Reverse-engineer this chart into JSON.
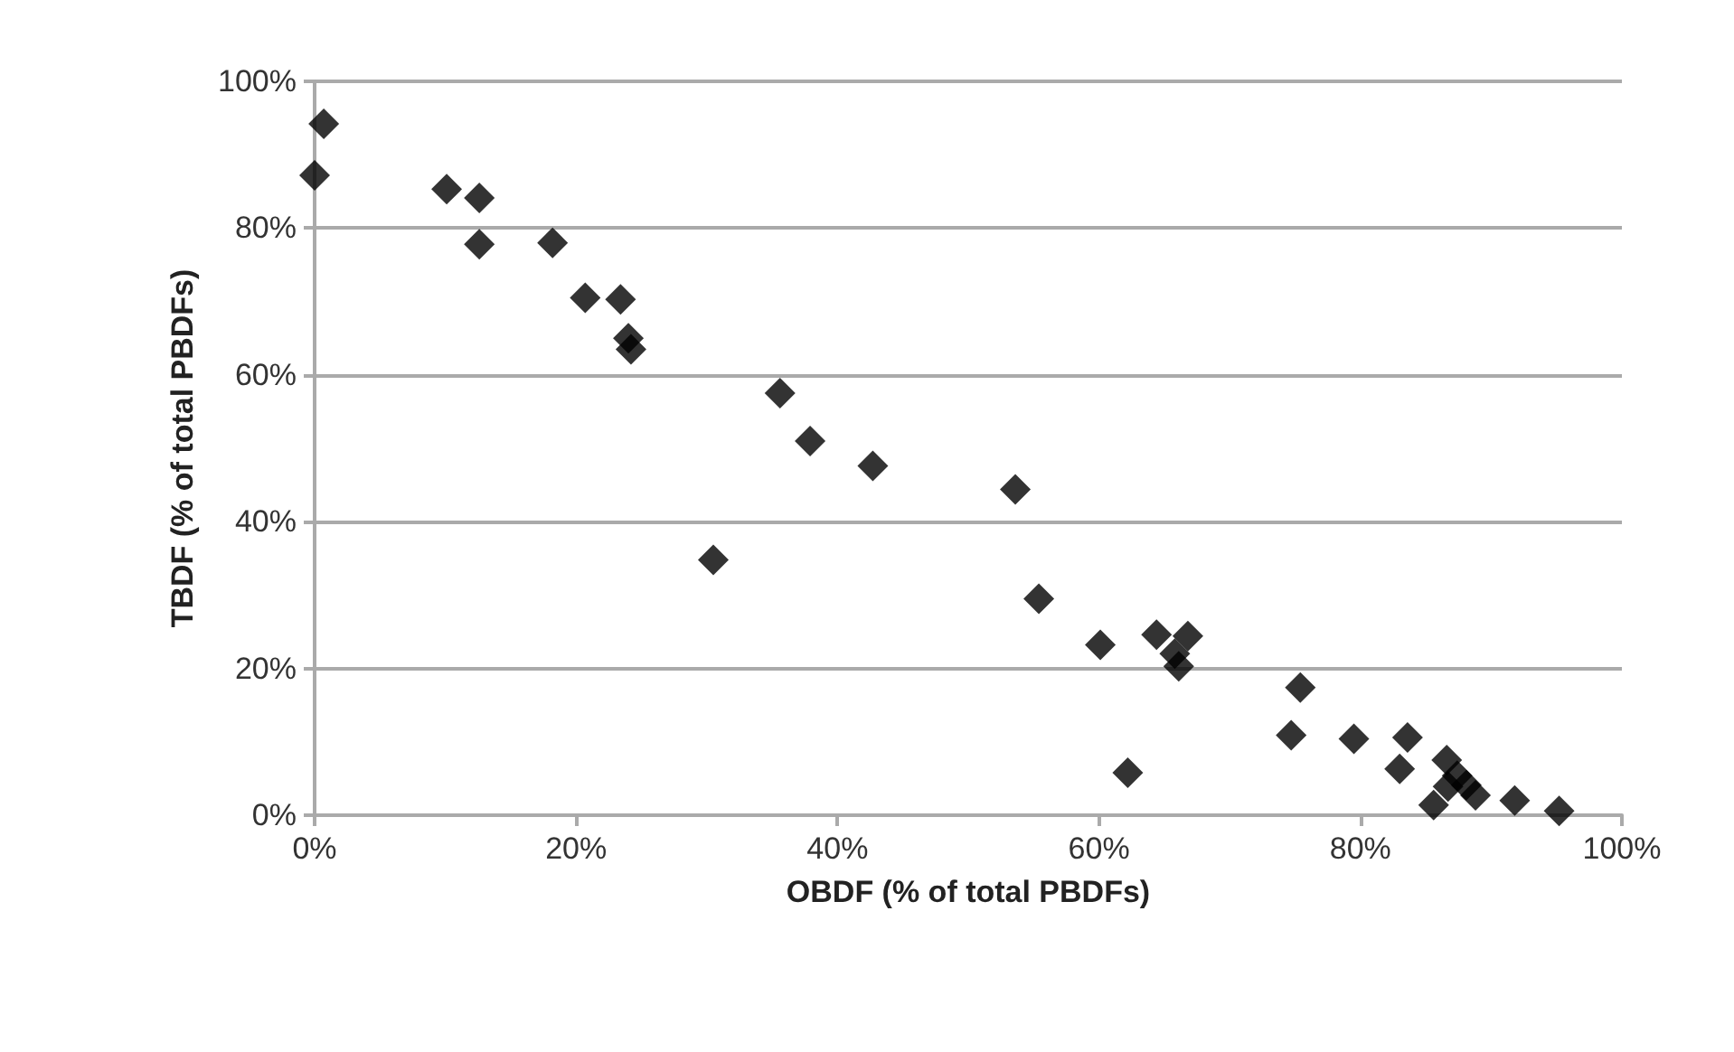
{
  "chart_data": {
    "type": "scatter",
    "xlabel": "OBDF (% of total PBDFs)",
    "ylabel": "TBDF (% of total PBDFs)",
    "x": [
      0,
      0.7,
      10.1,
      12,
      12.6,
      12.6,
      18.2,
      20.7,
      23.4,
      24,
      24.2,
      30.5,
      35.6,
      37.9,
      42.7,
      53.6,
      55.4,
      60.1,
      62.2,
      64.4,
      66.8,
      65.8,
      66.1,
      74.7,
      75.4,
      79.5,
      83,
      83.6,
      85.6,
      86.6,
      86.7,
      87.4,
      88.1,
      88.8,
      91.8,
      95.2
    ],
    "values": [
      87.2,
      94.2,
      85.3,
      null,
      84.1,
      77.8,
      78,
      70.5,
      70.3,
      65,
      63.5,
      34.8,
      57.5,
      51,
      47.6,
      44.4,
      29.5,
      23.2,
      5.8,
      24.6,
      24.4,
      22,
      20.3,
      10.9,
      17.4,
      10.4,
      6.3,
      10.6,
      1.4,
      7.5,
      3.9,
      5.4,
      4.1,
      2.7,
      2,
      0.6
    ],
    "color": "#000000",
    "marker": "diamond",
    "grid": "y",
    "xlim": [
      0,
      100
    ],
    "xticks": [
      {
        "value": 0,
        "label": "0%"
      },
      {
        "value": 20,
        "label": "20%"
      },
      {
        "value": 40,
        "label": "40%"
      },
      {
        "value": 60,
        "label": "60%"
      },
      {
        "value": 80,
        "label": "80%"
      },
      {
        "value": 100,
        "label": "100%"
      }
    ],
    "ylim": [
      0,
      100
    ],
    "yticks": [
      {
        "value": 0,
        "label": "0%"
      },
      {
        "value": 20,
        "label": "20%"
      },
      {
        "value": 40,
        "label": "40%"
      },
      {
        "value": 60,
        "label": "60%"
      },
      {
        "value": 80,
        "label": "80%"
      },
      {
        "value": 100,
        "label": "100%"
      }
    ]
  }
}
